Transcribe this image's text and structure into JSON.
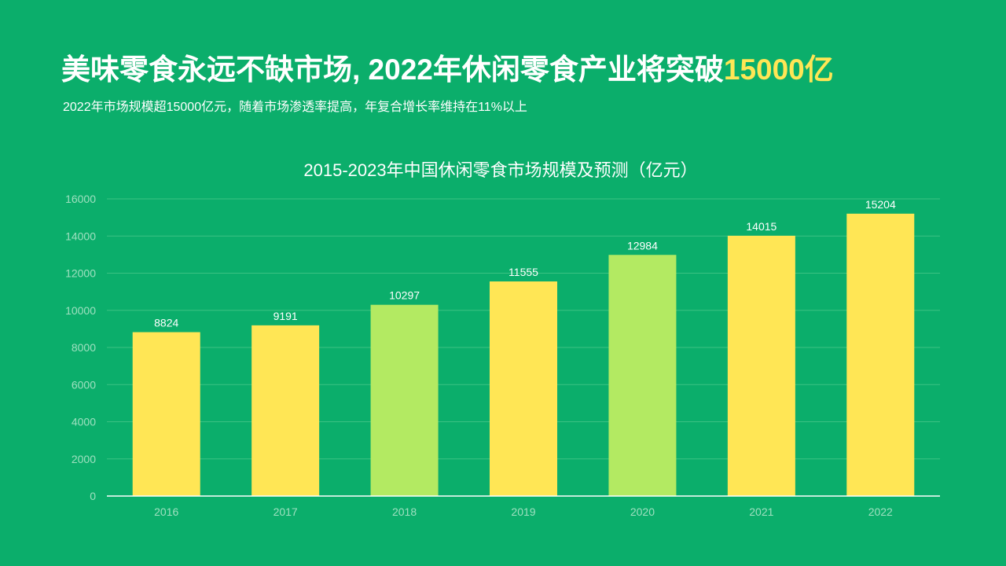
{
  "header": {
    "title_prefix": "美味零食永远不缺市场, 2022年休闲零食产业将突破",
    "title_highlight": "15000亿",
    "subtitle": "2022年市场规模超15000亿元，随着市场渗透率提高，年复合增长率维持在11%以上"
  },
  "colors": {
    "background": "#0bae6b",
    "bar_primary": "#ffe655",
    "bar_secondary": "#b3ea62",
    "highlight": "#ffe655"
  },
  "chart_data": {
    "type": "bar",
    "title": "2015-2023年中国休闲零食市场规模及预测（亿元）",
    "categories": [
      "2016",
      "2017",
      "2018",
      "2019",
      "2020",
      "2021",
      "2022"
    ],
    "values": [
      8824,
      9191,
      10297,
      11555,
      12984,
      14015,
      15204
    ],
    "bar_colors": [
      "#ffe655",
      "#ffe655",
      "#b3ea62",
      "#ffe655",
      "#b3ea62",
      "#ffe655",
      "#ffe655"
    ],
    "ylim": [
      0,
      16000
    ],
    "yticks": [
      0,
      2000,
      4000,
      6000,
      8000,
      10000,
      12000,
      14000,
      16000
    ],
    "grid": true,
    "legend": "none",
    "xlabel": "",
    "ylabel": ""
  }
}
